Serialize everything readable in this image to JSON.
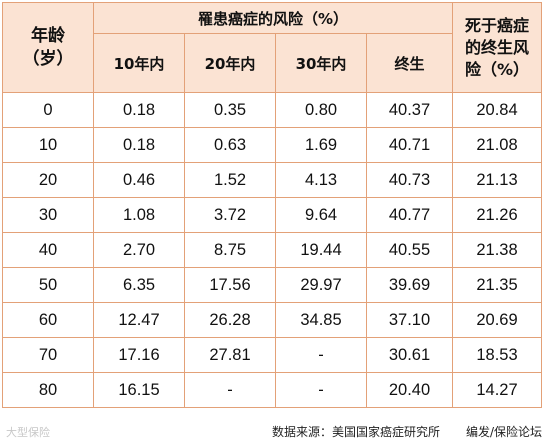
{
  "table": {
    "age_header": "年龄（岁）",
    "risk_header": "罹患癌症的风险（%）",
    "death_header": "死于癌症的终生风险（%）",
    "sub_headers": [
      "10年内",
      "20年内",
      "30年内",
      "终生"
    ],
    "rows": [
      [
        "0",
        "0.18",
        "0.35",
        "0.80",
        "40.37",
        "20.84"
      ],
      [
        "10",
        "0.18",
        "0.63",
        "1.69",
        "40.71",
        "21.08"
      ],
      [
        "20",
        "0.46",
        "1.52",
        "4.13",
        "40.73",
        "21.13"
      ],
      [
        "30",
        "1.08",
        "3.72",
        "9.64",
        "40.77",
        "21.26"
      ],
      [
        "40",
        "2.70",
        "8.75",
        "19.44",
        "40.55",
        "21.38"
      ],
      [
        "50",
        "6.35",
        "17.56",
        "29.97",
        "39.69",
        "21.35"
      ],
      [
        "60",
        "12.47",
        "26.28",
        "34.85",
        "37.10",
        "20.69"
      ],
      [
        "70",
        "17.16",
        "27.81",
        "-",
        "30.61",
        "18.53"
      ],
      [
        "80",
        "16.15",
        "-",
        "-",
        "20.40",
        "14.27"
      ]
    ]
  },
  "footer": {
    "watermark": "大型保险",
    "source": "数据来源：美国国家癌症研究所",
    "editor": "编发/保险论坛"
  },
  "colors": {
    "header_bg": "#fbe3d3",
    "border": "#e3a178"
  }
}
